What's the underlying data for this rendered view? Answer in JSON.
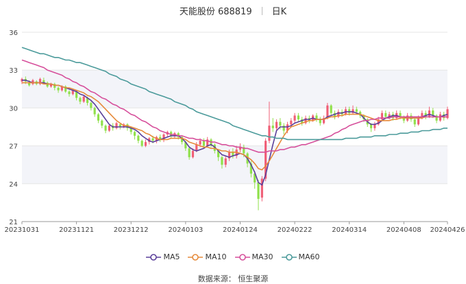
{
  "title": {
    "name": "天能股份 688819",
    "period": "日K"
  },
  "source_text": "数据来源：  恒生聚源",
  "colors": {
    "up": "#f05f77",
    "down": "#8fe04a",
    "ma5": "#5a3e9a",
    "ma10": "#e68a3a",
    "ma30": "#d64f9b",
    "ma60": "#4a9a9a",
    "grid": "#e6e6e6",
    "band": "#f3f4f9"
  },
  "chart_data": {
    "type": "candlestick",
    "ylim": [
      21,
      36
    ],
    "yticks": [
      21,
      24,
      27,
      30,
      33,
      36
    ],
    "xticks": [
      "20231031",
      "20231121",
      "20231212",
      "20240103",
      "20240124",
      "20240222",
      "20240314",
      "20240408",
      "20240426"
    ],
    "xtick_index": [
      0,
      15,
      30,
      45,
      60,
      75,
      90,
      105,
      117
    ],
    "candles": [
      [
        32.1,
        32.3,
        32.4,
        31.9
      ],
      [
        32.3,
        32.1,
        32.5,
        31.9
      ],
      [
        32.0,
        31.8,
        32.2,
        31.7
      ],
      [
        31.9,
        32.2,
        32.3,
        31.8
      ],
      [
        32.1,
        31.9,
        32.2,
        31.8
      ],
      [
        31.9,
        32.3,
        32.4,
        31.8
      ],
      [
        32.2,
        32.0,
        32.4,
        31.9
      ],
      [
        32.0,
        31.7,
        32.1,
        31.6
      ],
      [
        31.7,
        31.9,
        32.0,
        31.6
      ],
      [
        31.9,
        31.6,
        32.0,
        31.4
      ],
      [
        31.6,
        31.4,
        31.7,
        31.2
      ],
      [
        31.4,
        31.7,
        31.8,
        31.3
      ],
      [
        31.7,
        31.3,
        31.8,
        31.2
      ],
      [
        31.3,
        31.1,
        31.4,
        30.9
      ],
      [
        31.1,
        31.4,
        31.5,
        31.0
      ],
      [
        31.3,
        30.8,
        31.4,
        30.6
      ],
      [
        30.8,
        30.5,
        30.9,
        30.3
      ],
      [
        30.5,
        30.9,
        31.0,
        30.4
      ],
      [
        30.8,
        30.4,
        30.9,
        30.2
      ],
      [
        30.4,
        30.0,
        30.5,
        29.8
      ],
      [
        30.0,
        29.5,
        30.1,
        29.3
      ],
      [
        29.5,
        29.0,
        29.6,
        28.8
      ],
      [
        29.0,
        28.6,
        29.1,
        28.4
      ],
      [
        28.6,
        28.2,
        28.7,
        28.0
      ],
      [
        28.2,
        28.6,
        28.7,
        28.1
      ],
      [
        28.6,
        28.4,
        28.8,
        28.2
      ],
      [
        28.4,
        28.8,
        28.9,
        28.3
      ],
      [
        28.7,
        28.5,
        28.8,
        28.3
      ],
      [
        28.5,
        28.7,
        28.8,
        28.4
      ],
      [
        28.7,
        28.4,
        28.8,
        28.2
      ],
      [
        28.4,
        28.1,
        28.5,
        27.9
      ],
      [
        28.1,
        27.8,
        28.2,
        27.5
      ],
      [
        27.8,
        27.4,
        27.9,
        27.2
      ],
      [
        27.4,
        27.0,
        27.5,
        26.9
      ],
      [
        27.0,
        27.3,
        27.5,
        26.9
      ],
      [
        27.3,
        27.6,
        27.7,
        27.1
      ],
      [
        27.6,
        27.4,
        27.8,
        27.2
      ],
      [
        27.4,
        27.7,
        27.8,
        27.2
      ],
      [
        27.7,
        27.5,
        27.9,
        27.3
      ],
      [
        27.5,
        27.9,
        28.0,
        27.3
      ],
      [
        27.9,
        28.1,
        28.2,
        27.7
      ],
      [
        28.1,
        27.8,
        28.2,
        27.6
      ],
      [
        27.8,
        28.0,
        28.1,
        27.6
      ],
      [
        28.0,
        27.7,
        28.1,
        27.5
      ],
      [
        27.7,
        27.3,
        27.8,
        27.1
      ],
      [
        27.3,
        26.8,
        27.4,
        26.6
      ],
      [
        26.8,
        26.1,
        26.9,
        25.9
      ],
      [
        26.1,
        26.6,
        26.8,
        26.0
      ],
      [
        26.6,
        27.1,
        27.3,
        26.5
      ],
      [
        27.1,
        27.4,
        27.6,
        26.9
      ],
      [
        27.4,
        27.0,
        27.6,
        26.8
      ],
      [
        27.0,
        27.5,
        27.7,
        26.9
      ],
      [
        27.5,
        27.1,
        27.6,
        26.9
      ],
      [
        27.1,
        26.6,
        27.2,
        26.4
      ],
      [
        26.6,
        26.1,
        26.7,
        25.8
      ],
      [
        26.1,
        25.5,
        26.2,
        25.2
      ],
      [
        25.5,
        26.0,
        26.2,
        25.3
      ],
      [
        26.0,
        26.5,
        26.7,
        25.8
      ],
      [
        26.5,
        26.2,
        26.8,
        26.0
      ],
      [
        26.2,
        26.7,
        27.0,
        26.0
      ],
      [
        26.7,
        26.9,
        27.2,
        26.5
      ],
      [
        26.9,
        26.4,
        27.1,
        26.1
      ],
      [
        26.4,
        25.6,
        26.5,
        25.3
      ],
      [
        25.6,
        24.8,
        25.8,
        24.5
      ],
      [
        24.8,
        24.1,
        25.0,
        23.6
      ],
      [
        24.1,
        22.8,
        24.3,
        21.9
      ],
      [
        22.9,
        24.4,
        24.6,
        22.6
      ],
      [
        24.4,
        27.4,
        27.6,
        24.2
      ],
      [
        27.4,
        28.6,
        30.5,
        27.2
      ],
      [
        28.6,
        28.4,
        29.2,
        28.1
      ],
      [
        28.4,
        28.9,
        29.1,
        28.2
      ],
      [
        28.9,
        28.6,
        29.2,
        28.3
      ],
      [
        28.6,
        28.2,
        28.8,
        27.9
      ],
      [
        28.2,
        28.7,
        28.9,
        28.0
      ],
      [
        28.7,
        29.0,
        29.2,
        28.5
      ],
      [
        29.0,
        29.4,
        29.6,
        28.8
      ],
      [
        29.4,
        29.1,
        29.6,
        28.9
      ],
      [
        29.1,
        28.8,
        29.3,
        28.6
      ],
      [
        28.8,
        29.2,
        29.4,
        28.7
      ],
      [
        29.2,
        29.0,
        29.4,
        28.8
      ],
      [
        29.0,
        29.4,
        29.5,
        28.9
      ],
      [
        29.4,
        29.1,
        29.6,
        28.9
      ],
      [
        29.1,
        28.8,
        29.3,
        28.6
      ],
      [
        28.8,
        29.2,
        29.4,
        28.7
      ],
      [
        29.2,
        30.2,
        30.4,
        29.1
      ],
      [
        30.2,
        29.6,
        30.3,
        29.4
      ],
      [
        29.6,
        29.3,
        29.8,
        29.1
      ],
      [
        29.3,
        29.7,
        29.9,
        29.2
      ],
      [
        29.7,
        29.5,
        29.9,
        29.3
      ],
      [
        29.5,
        29.9,
        30.1,
        29.4
      ],
      [
        29.9,
        29.6,
        30.1,
        29.4
      ],
      [
        29.6,
        29.9,
        30.2,
        29.5
      ],
      [
        29.9,
        29.7,
        30.1,
        29.5
      ],
      [
        29.7,
        29.4,
        29.8,
        29.2
      ],
      [
        29.4,
        29.1,
        29.5,
        28.9
      ],
      [
        29.1,
        28.7,
        29.2,
        28.5
      ],
      [
        28.7,
        28.4,
        28.8,
        28.1
      ],
      [
        28.4,
        28.7,
        28.9,
        28.2
      ],
      [
        28.7,
        29.1,
        29.3,
        28.6
      ],
      [
        29.1,
        29.6,
        29.8,
        29.0
      ],
      [
        29.6,
        29.3,
        29.8,
        29.1
      ],
      [
        29.3,
        29.5,
        29.7,
        29.1
      ],
      [
        29.5,
        29.2,
        29.7,
        29.0
      ],
      [
        29.2,
        29.6,
        29.8,
        29.1
      ],
      [
        29.6,
        29.3,
        29.8,
        29.1
      ],
      [
        29.3,
        29.0,
        29.4,
        28.8
      ],
      [
        29.0,
        29.4,
        29.6,
        28.9
      ],
      [
        29.4,
        29.1,
        29.6,
        28.9
      ],
      [
        29.1,
        28.7,
        29.2,
        28.5
      ],
      [
        28.7,
        29.2,
        29.4,
        28.6
      ],
      [
        29.2,
        29.6,
        29.8,
        29.1
      ],
      [
        29.6,
        29.3,
        29.8,
        29.1
      ],
      [
        29.3,
        29.8,
        30.1,
        29.2
      ],
      [
        29.8,
        29.4,
        30.0,
        29.2
      ],
      [
        29.4,
        29.0,
        29.5,
        28.8
      ],
      [
        29.0,
        29.5,
        29.7,
        28.9
      ],
      [
        29.5,
        29.2,
        29.7,
        29.0
      ],
      [
        29.2,
        29.9,
        30.1,
        29.1
      ]
    ],
    "series": [
      {
        "name": "MA5",
        "color_key": "ma5",
        "start": 0,
        "values": [
          32.2,
          32.2,
          32.1,
          32.0,
          32.0,
          32.0,
          32.0,
          31.9,
          31.9,
          31.8,
          31.8,
          31.7,
          31.6,
          31.5,
          31.4,
          31.3,
          31.1,
          31.0,
          30.8,
          30.6,
          30.3,
          29.9,
          29.5,
          29.1,
          28.7,
          28.5,
          28.5,
          28.5,
          28.5,
          28.5,
          28.4,
          28.3,
          28.1,
          27.8,
          27.6,
          27.4,
          27.3,
          27.4,
          27.5,
          27.6,
          27.7,
          27.8,
          27.8,
          27.8,
          27.6,
          27.3,
          26.9,
          26.7,
          26.6,
          26.7,
          26.8,
          27.0,
          27.1,
          26.9,
          26.6,
          26.3,
          26.2,
          26.1,
          26.2,
          26.3,
          26.4,
          26.3,
          26.0,
          25.5,
          24.9,
          24.1,
          23.9,
          24.7,
          25.9,
          27.1,
          28.2,
          28.5,
          28.5,
          28.5,
          28.6,
          28.8,
          28.9,
          29.0,
          29.1,
          29.1,
          29.2,
          29.1,
          29.1,
          29.1,
          29.3,
          29.4,
          29.5,
          29.6,
          29.6,
          29.7,
          29.7,
          29.7,
          29.6,
          29.5,
          29.2,
          28.9,
          28.7,
          28.7,
          28.8,
          29.0,
          29.2,
          29.3,
          29.4,
          29.4,
          29.3,
          29.3,
          29.2,
          29.2,
          29.2,
          29.2,
          29.3,
          29.4,
          29.5,
          29.4,
          29.3,
          29.3,
          29.4,
          29.5
        ]
      },
      {
        "name": "MA10",
        "color_key": "ma10",
        "start": 0,
        "values": [
          32.0,
          32.0,
          32.0,
          32.0,
          32.0,
          32.0,
          31.9,
          31.9,
          31.9,
          31.8,
          31.8,
          31.7,
          31.6,
          31.6,
          31.5,
          31.4,
          31.3,
          31.2,
          31.0,
          30.9,
          30.7,
          30.5,
          30.2,
          29.9,
          29.6,
          29.3,
          29.0,
          28.8,
          28.6,
          28.6,
          28.5,
          28.4,
          28.3,
          28.2,
          28.0,
          27.9,
          27.7,
          27.6,
          27.5,
          27.5,
          27.5,
          27.6,
          27.6,
          27.6,
          27.6,
          27.5,
          27.3,
          27.2,
          27.1,
          27.0,
          26.9,
          26.9,
          26.8,
          26.8,
          26.7,
          26.6,
          26.6,
          26.5,
          26.5,
          26.5,
          26.4,
          26.3,
          26.1,
          25.9,
          25.6,
          25.2,
          25.1,
          25.4,
          25.8,
          26.3,
          26.8,
          27.3,
          27.8,
          28.2,
          28.5,
          28.6,
          28.7,
          28.8,
          28.9,
          29.0,
          29.0,
          29.1,
          29.1,
          29.1,
          29.2,
          29.3,
          29.3,
          29.4,
          29.4,
          29.5,
          29.5,
          29.5,
          29.5,
          29.5,
          29.4,
          29.3,
          29.2,
          29.1,
          29.0,
          29.0,
          29.0,
          29.0,
          29.1,
          29.1,
          29.2,
          29.2,
          29.2,
          29.2,
          29.2,
          29.2,
          29.2,
          29.3,
          29.3,
          29.3,
          29.3,
          29.3,
          29.3,
          29.3
        ]
      },
      {
        "name": "MA30",
        "color_key": "ma30",
        "start": 0,
        "values": [
          33.8,
          33.7,
          33.6,
          33.5,
          33.4,
          33.3,
          33.2,
          33.0,
          32.9,
          32.8,
          32.7,
          32.6,
          32.4,
          32.3,
          32.1,
          32.0,
          31.8,
          31.7,
          31.5,
          31.3,
          31.2,
          31.0,
          30.8,
          30.7,
          30.5,
          30.3,
          30.2,
          30.0,
          29.9,
          29.7,
          29.5,
          29.4,
          29.2,
          29.0,
          28.9,
          28.7,
          28.5,
          28.4,
          28.2,
          28.1,
          28.0,
          27.9,
          27.9,
          27.8,
          27.8,
          27.7,
          27.6,
          27.6,
          27.5,
          27.5,
          27.4,
          27.4,
          27.3,
          27.3,
          27.2,
          27.1,
          27.1,
          27.0,
          27.0,
          26.9,
          26.9,
          26.8,
          26.8,
          26.7,
          26.6,
          26.5,
          26.5,
          26.5,
          26.6,
          26.6,
          26.6,
          26.7,
          26.7,
          26.8,
          26.9,
          26.9,
          27.0,
          27.1,
          27.1,
          27.2,
          27.3,
          27.4,
          27.5,
          27.6,
          27.7,
          27.8,
          28.0,
          28.1,
          28.3,
          28.4,
          28.6,
          28.7,
          28.8,
          28.9,
          29.0,
          29.0,
          29.1,
          29.1,
          29.2,
          29.2,
          29.2,
          29.2,
          29.3,
          29.3,
          29.3,
          29.3,
          29.3,
          29.3,
          29.3,
          29.3,
          29.3,
          29.3,
          29.3,
          29.3,
          29.3,
          29.3,
          29.3,
          29.3
        ]
      },
      {
        "name": "MA60",
        "color_key": "ma60",
        "start": 0,
        "values": [
          34.8,
          34.7,
          34.6,
          34.5,
          34.4,
          34.3,
          34.3,
          34.2,
          34.1,
          34.0,
          34.0,
          33.9,
          33.8,
          33.8,
          33.7,
          33.6,
          33.6,
          33.5,
          33.4,
          33.3,
          33.2,
          33.1,
          33.0,
          32.9,
          32.7,
          32.6,
          32.5,
          32.3,
          32.2,
          32.1,
          31.9,
          31.8,
          31.7,
          31.6,
          31.5,
          31.3,
          31.2,
          31.1,
          31.0,
          30.9,
          30.8,
          30.7,
          30.5,
          30.4,
          30.3,
          30.2,
          30.0,
          29.9,
          29.7,
          29.6,
          29.5,
          29.4,
          29.3,
          29.2,
          29.1,
          29.0,
          28.9,
          28.8,
          28.6,
          28.5,
          28.4,
          28.3,
          28.2,
          28.1,
          28.0,
          27.9,
          27.8,
          27.8,
          27.7,
          27.7,
          27.6,
          27.6,
          27.6,
          27.5,
          27.5,
          27.5,
          27.5,
          27.5,
          27.5,
          27.5,
          27.5,
          27.5,
          27.5,
          27.5,
          27.5,
          27.5,
          27.5,
          27.5,
          27.5,
          27.6,
          27.6,
          27.6,
          27.6,
          27.7,
          27.7,
          27.7,
          27.7,
          27.8,
          27.8,
          27.8,
          27.8,
          27.9,
          27.9,
          27.9,
          28.0,
          28.0,
          28.0,
          28.1,
          28.1,
          28.1,
          28.2,
          28.2,
          28.2,
          28.3,
          28.3,
          28.3,
          28.4,
          28.4
        ]
      }
    ]
  }
}
